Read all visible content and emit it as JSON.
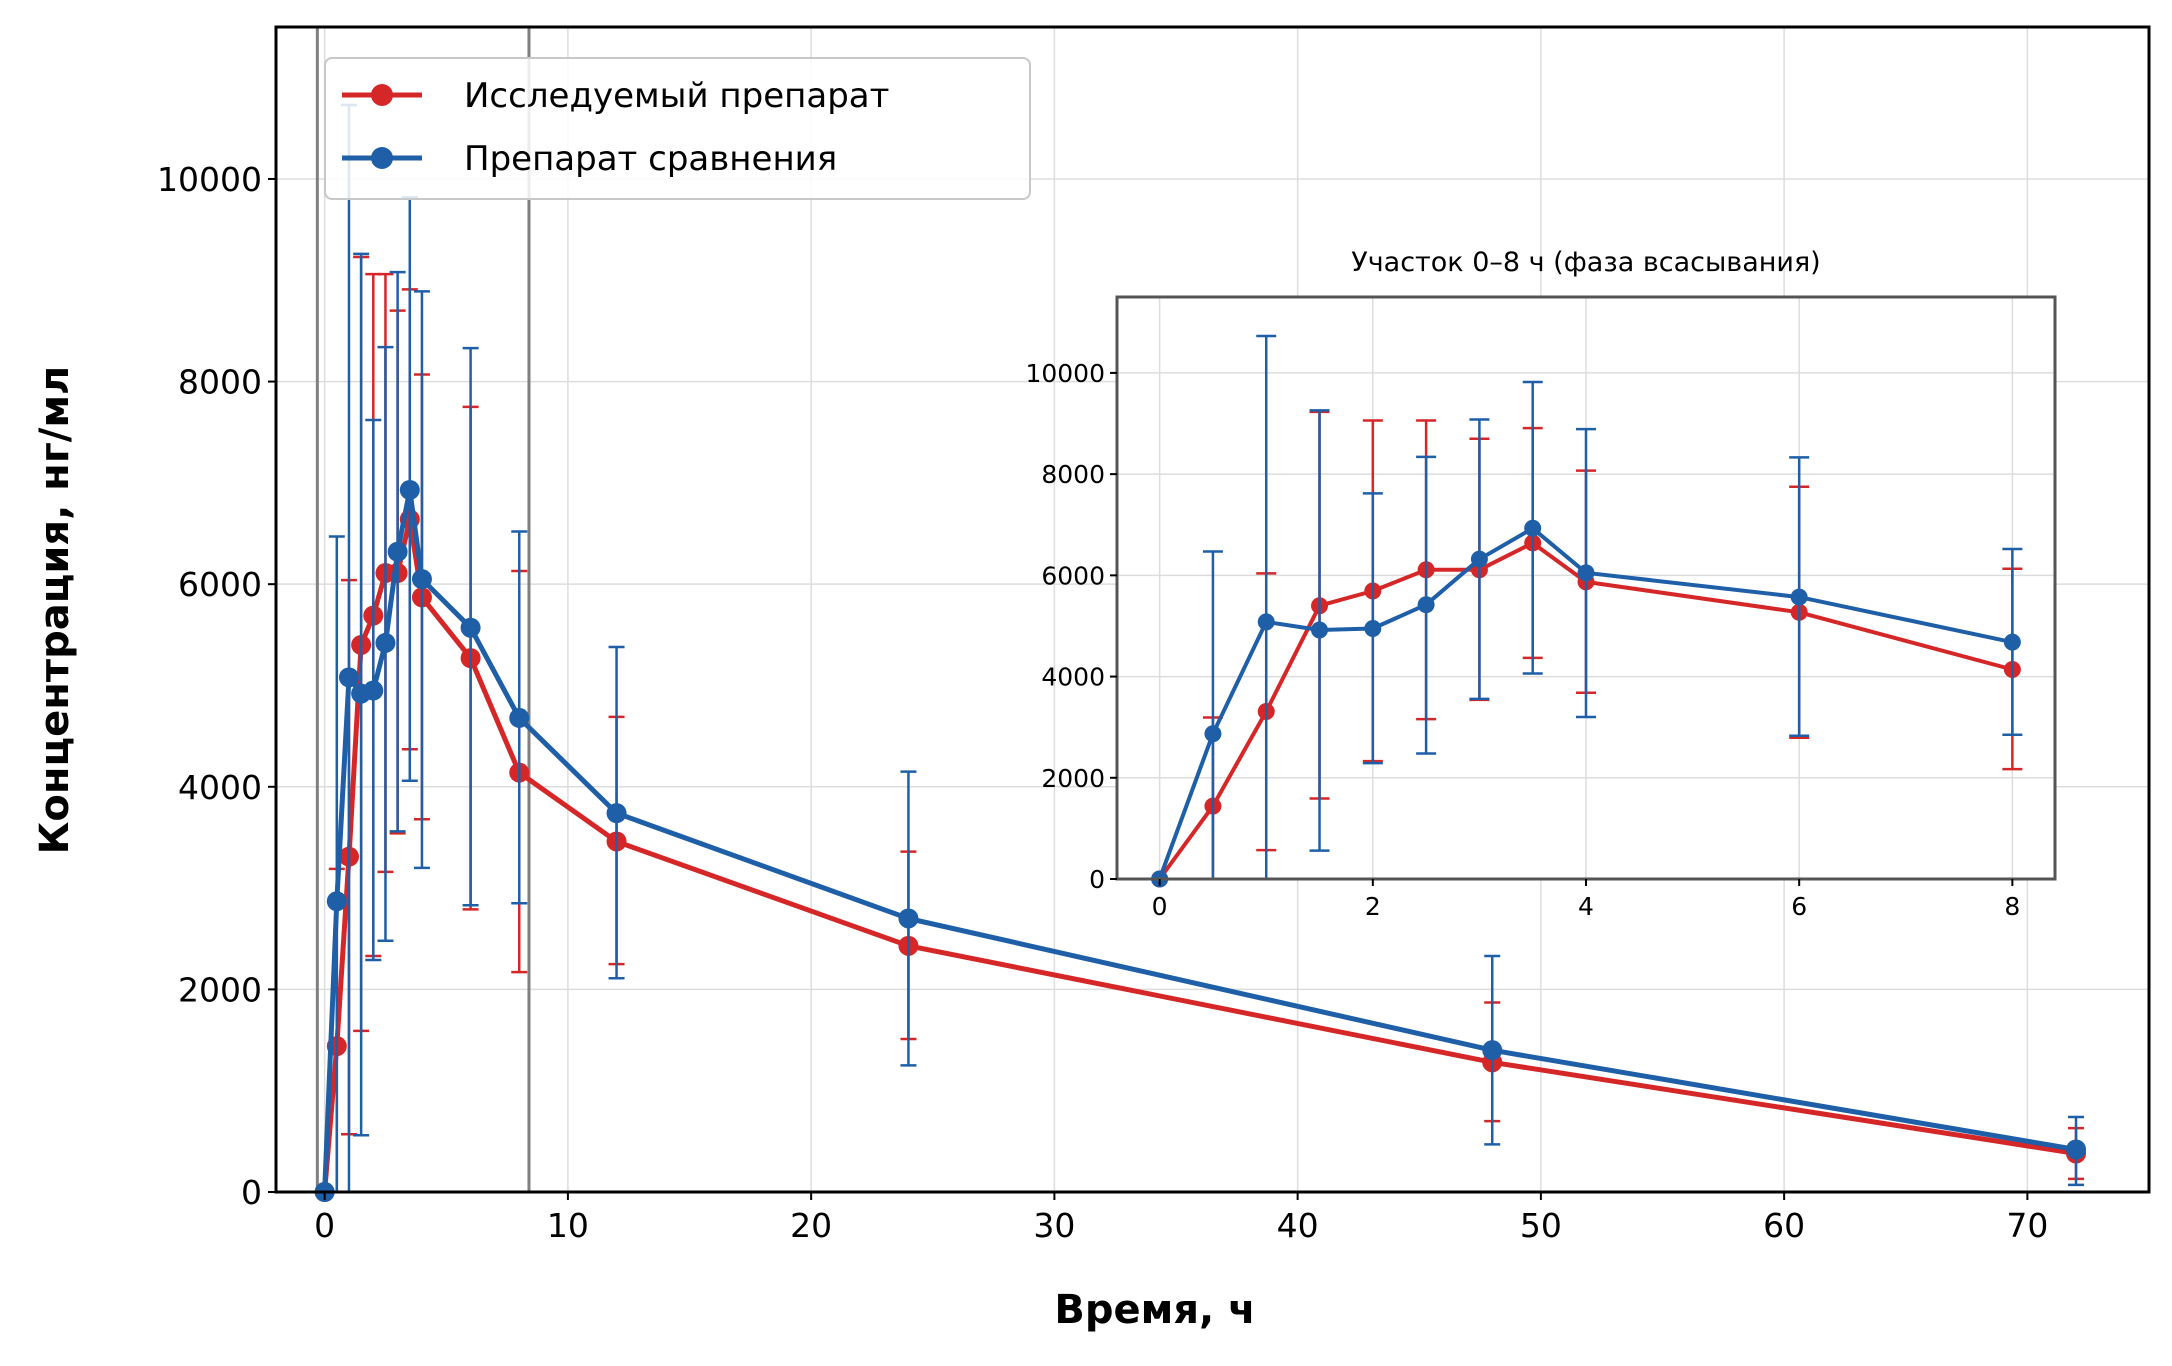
{
  "colors": {
    "test": "#d62728",
    "reference": "#1f5fa8",
    "grid": "#dddddd",
    "frame": "#000000",
    "window": "#808080"
  },
  "chart_data": {
    "type": "line",
    "xlabel": "Время, ч",
    "ylabel": "Концентрация, нг/мл",
    "xlim": [
      -2,
      75
    ],
    "ylim": [
      0,
      11500
    ],
    "xticks": [
      0,
      10,
      20,
      30,
      40,
      50,
      60,
      70
    ],
    "yticks": [
      0,
      2000,
      4000,
      6000,
      8000,
      10000
    ],
    "grid": true,
    "legend_position": "top-left",
    "highlight_window": [
      -0.3,
      8.4
    ],
    "x": [
      0,
      0.5,
      1,
      1.5,
      2,
      2.5,
      3,
      3.5,
      4,
      6,
      8,
      12,
      24,
      48,
      72
    ],
    "series": [
      {
        "name": "Исследуемый препарат",
        "color_key": "test",
        "values": [
          0,
          1440,
          3310,
          5400,
          5690,
          6110,
          6110,
          6640,
          5870,
          5270,
          4140,
          3460,
          2430,
          1280,
          380
        ],
        "err_low": [
          0,
          0,
          570,
          1590,
          2330,
          3160,
          3540,
          4370,
          3680,
          2790,
          2170,
          2250,
          1510,
          700,
          130
        ],
        "err_high": [
          0,
          3190,
          6040,
          9230,
          9060,
          9060,
          8700,
          8910,
          8070,
          7750,
          6130,
          4690,
          3360,
          1870,
          630
        ]
      },
      {
        "name": "Препарат сравнения",
        "color_key": "reference",
        "values": [
          0,
          2870,
          5080,
          4920,
          4950,
          5420,
          6320,
          6930,
          6050,
          5570,
          4680,
          3740,
          2700,
          1400,
          420
        ],
        "err_low": [
          0,
          0,
          0,
          560,
          2290,
          2480,
          3560,
          4060,
          3200,
          2830,
          2850,
          2110,
          1250,
          470,
          70
        ],
        "err_high": [
          0,
          6470,
          10730,
          9260,
          7620,
          8340,
          9080,
          9820,
          8890,
          8330,
          6520,
          5380,
          4150,
          2330,
          740
        ]
      }
    ],
    "inset": {
      "title": "Участок 0–8 ч (фаза всасывания)",
      "xlim": [
        -0.4,
        8.4
      ],
      "ylim": [
        0,
        11500
      ],
      "xticks": [
        0,
        2,
        4,
        6,
        8
      ],
      "yticks": [
        0,
        2000,
        4000,
        6000,
        8000,
        10000
      ],
      "x_range": [
        0,
        8
      ]
    }
  }
}
